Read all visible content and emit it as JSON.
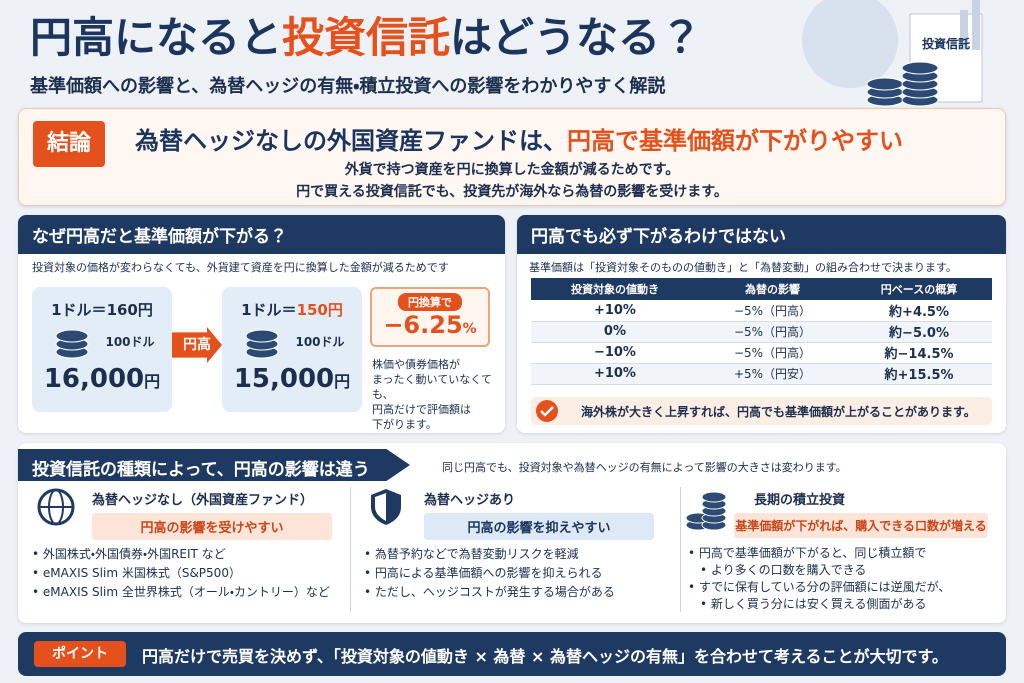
{
  "header": {
    "title_parts": [
      "円高になると",
      "投資信託",
      "はどうなる？"
    ],
    "subtitle": "基準価額への影響と、為替ヘッジの有無・積立投資への影響をわかりやすく解説",
    "illustration_label": "投資信託"
  },
  "conclusion": {
    "badge": "結論",
    "headline_parts": [
      "為替ヘッジなしの外国資産ファンドは、",
      "円高で基準価額が下がりやすい"
    ],
    "lines": [
      "外貨で持つ資産を円に換算した金額が減るためです。",
      "円で買える投資信託でも、投資先が海外なら為替の影響を受けます。"
    ]
  },
  "why": {
    "title": "なぜ円高だと基準価額が下がる？",
    "note": "投資対象の価格が変わらなくても、外貨建て資産を円に換算した金額が減るためです",
    "before": {
      "rate_parts": [
        "1ドル＝",
        "160円"
      ],
      "amount_label": "100ドル",
      "value": "16,000",
      "unit": "円"
    },
    "arrow": "円高",
    "after": {
      "rate_parts": [
        "1ドル＝",
        "150円"
      ],
      "amount_label": "100ドル",
      "value": "15,000",
      "unit": "円"
    },
    "callout": {
      "label": "円換算で",
      "value": "−6.25",
      "unit": "%"
    },
    "explanation": [
      "株価や債券価格が",
      "まったく動いていなくても、",
      "円高だけで評価額は",
      "下がります。"
    ]
  },
  "not_always": {
    "title": "円高でも必ず下がるわけではない",
    "note": "基準価額は「投資対象そのものの値動き」と「為替変動」の組み合わせで決まります。",
    "table": {
      "headers": [
        "投資対象の値動き",
        "為替の影響",
        "円ベースの概算"
      ],
      "rows": [
        [
          "+10%",
          "−5%（円高）",
          "約+4.5%"
        ],
        [
          "0%",
          "−5%（円高）",
          "約−5.0%"
        ],
        [
          "−10%",
          "−5%（円高）",
          "約−14.5%"
        ],
        [
          "+10%",
          "+5%（円安）",
          "約+15.5%"
        ]
      ]
    },
    "check": "海外株が大きく上昇すれば、円高でも基準価額が上がることがあります。"
  },
  "types": {
    "title": "投資信託の種類によって、円高の影響は違う",
    "note": "同じ円高でも、投資対象や為替ヘッジの有無によって影響の大きさは変わります。",
    "items": [
      {
        "title": "為替ヘッジなし（外国資産ファンド）",
        "tag": "円高の影響を受けやすい",
        "bullets": [
          "外国株式・外国債券・外国REIT など",
          "eMAXIS Slim 米国株式（S&P500）",
          "eMAXIS Slim 全世界株式（オール・カントリー）など"
        ]
      },
      {
        "title": "為替ヘッジあり",
        "tag": "円高の影響を抑えやすい",
        "bullets": [
          "為替予約などで為替変動リスクを軽減",
          "円高による基準価額への影響を抑えられる",
          "ただし、ヘッジコストが発生する場合がある"
        ]
      },
      {
        "title": "長期の積立投資",
        "tag": "基準価額が下がれば、購入できる口数が増える",
        "bullets": [
          "円高で基準価額が下がると、同じ積立額で",
          "より多くの口数を購入できる",
          "すでに保有している分の評価額には逆風だが、",
          "新しく買う分には安く買える側面がある"
        ]
      }
    ]
  },
  "point": {
    "badge": "ポイント",
    "text": "円高だけで売買を決めず、「投資対象の値動き × 為替 × 為替ヘッジの有無」を合わせて考えることが大切です。"
  }
}
